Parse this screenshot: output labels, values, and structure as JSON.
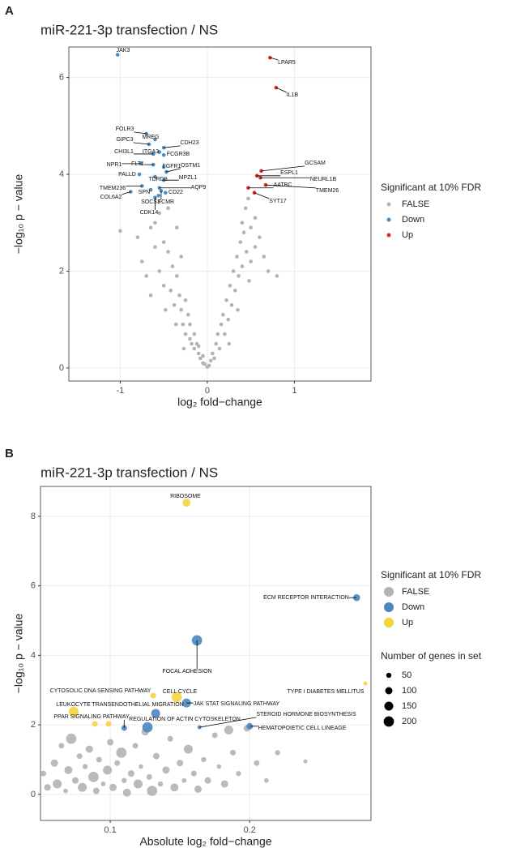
{
  "chart_data": [
    {
      "type": "scatter",
      "panel": "A",
      "title": "miR-221-3p transfection / NS",
      "xlabel": "log₂ fold−change",
      "ylabel": "−log₁₀ p − value",
      "legend_title": "Significant at 10% FDR",
      "xlim": [
        -1.59,
        1.88
      ],
      "ylim": [
        -0.27,
        6.63
      ],
      "xticks": [
        -1,
        0,
        1
      ],
      "yticks": [
        0,
        2,
        4,
        6
      ],
      "grid": true,
      "series": [
        {
          "name": "FALSE",
          "color": "#b3b3b3",
          "x": [
            -1.0,
            -0.8,
            -0.75,
            -0.7,
            -0.65,
            -0.6,
            -0.6,
            -0.55,
            -0.55,
            -0.5,
            -0.5,
            -0.45,
            -0.45,
            -0.42,
            -0.4,
            -0.38,
            -0.35,
            -0.35,
            -0.32,
            -0.3,
            -0.3,
            -0.28,
            -0.25,
            -0.25,
            -0.22,
            -0.2,
            -0.2,
            -0.18,
            -0.15,
            -0.15,
            -0.12,
            -0.1,
            -0.1,
            -0.08,
            -0.05,
            -0.05,
            -0.03,
            0,
            0.02,
            0.04,
            0.06,
            0.08,
            0.1,
            0.12,
            0.14,
            0.16,
            0.18,
            0.2,
            0.22,
            0.24,
            0.26,
            0.28,
            0.3,
            0.32,
            0.34,
            0.36,
            0.38,
            0.4,
            0.4,
            0.42,
            0.44,
            0.45,
            0.47,
            0.5,
            0.5,
            0.55,
            0.55,
            0.6,
            0.65,
            0.7,
            0.8,
            -0.65,
            -0.48,
            0.48,
            0.35,
            -0.36,
            0.25,
            -0.27
          ],
          "values": [
            2.83,
            2.7,
            2.2,
            1.9,
            2.9,
            2.5,
            3.0,
            2.0,
            3.2,
            2.6,
            1.7,
            2.4,
            3.3,
            1.6,
            2.1,
            1.3,
            1.9,
            2.9,
            1.5,
            1.2,
            2.3,
            0.9,
            1.4,
            0.7,
            1.1,
            0.6,
            0.9,
            0.5,
            0.7,
            0.4,
            0.5,
            0.3,
            0.45,
            0.2,
            0.25,
            0.1,
            0.08,
            0.02,
            0.05,
            0.15,
            0.3,
            0.2,
            0.5,
            0.7,
            0.4,
            0.9,
            1.1,
            0.7,
            1.4,
            1.0,
            1.7,
            1.3,
            2.0,
            1.6,
            2.3,
            1.9,
            2.6,
            2.1,
            3.0,
            2.8,
            3.3,
            2.4,
            3.5,
            2.9,
            2.2,
            3.1,
            2.5,
            2.7,
            2.3,
            2.0,
            1.9,
            1.5,
            1.2,
            1.8,
            1.2,
            0.9,
            0.5,
            0.4
          ]
        },
        {
          "name": "Down",
          "color": "#4a8ec6",
          "x": [
            -1.03,
            -0.7,
            -0.6,
            -0.67,
            -0.5,
            -0.62,
            -0.55,
            -0.5,
            -0.76,
            -0.62,
            -0.5,
            -0.47,
            -0.78,
            -0.6,
            -0.5,
            -0.75,
            -0.55,
            -0.48,
            -0.65,
            -0.88,
            -0.56,
            -0.53,
            -0.6
          ],
          "values": [
            6.47,
            4.84,
            4.72,
            4.62,
            4.55,
            4.42,
            4.46,
            4.4,
            4.22,
            4.2,
            4.15,
            4.05,
            4.0,
            3.95,
            3.88,
            3.76,
            3.72,
            3.62,
            3.68,
            3.64,
            3.56,
            3.66,
            3.52
          ],
          "labels": [
            "JAK3",
            "FOLR3",
            "MREG",
            "GIPC3",
            "CDH23",
            "CHI3L1",
            "ITGA3",
            "FCGR3B",
            "NPR1",
            "FLT1",
            "FGFR1",
            "OSTM1",
            "PALLD",
            "TDRD9",
            "MPZL1",
            "TMEM236",
            "AQP9",
            "CD22",
            "SPN",
            "COL6A2",
            "SOCS3",
            "FCMR",
            "CDK14"
          ]
        },
        {
          "name": "Up",
          "color": "#d62c2c",
          "x": [
            0.72,
            0.79,
            0.62,
            0.57,
            0.61,
            0.67,
            0.47,
            0.54
          ],
          "values": [
            6.41,
            5.79,
            4.07,
            3.97,
            3.93,
            3.78,
            3.72,
            3.62
          ],
          "labels": [
            "LPAR5",
            "IL1B",
            "GCSAM",
            "ESPL1",
            "NEURL1B",
            "TMEM26",
            "AATBC",
            "SYT17"
          ]
        }
      ]
    },
    {
      "type": "scatter",
      "panel": "B",
      "title": "miR-221-3p transfection / NS",
      "xlabel": "Absolute log₂ fold−change",
      "ylabel": "−log₁₀ p − value",
      "legend_title": "Significant at 10% FDR",
      "xlim": [
        0.05,
        0.287
      ],
      "ylim": [
        -0.75,
        8.86
      ],
      "xticks": [
        0.1,
        0.2
      ],
      "yticks": [
        0,
        2,
        4,
        6,
        8
      ],
      "grid": true,
      "size_legend": {
        "title": "Number of genes in set",
        "values": [
          50,
          100,
          150,
          200
        ]
      },
      "series": [
        {
          "name": "FALSE",
          "color": "#b3b3b3",
          "x": [
            0.052,
            0.055,
            0.06,
            0.062,
            0.065,
            0.068,
            0.07,
            0.072,
            0.075,
            0.078,
            0.08,
            0.082,
            0.085,
            0.088,
            0.09,
            0.092,
            0.095,
            0.098,
            0.1,
            0.102,
            0.105,
            0.108,
            0.11,
            0.112,
            0.115,
            0.118,
            0.12,
            0.122,
            0.125,
            0.128,
            0.13,
            0.133,
            0.136,
            0.14,
            0.143,
            0.146,
            0.15,
            0.153,
            0.156,
            0.16,
            0.163,
            0.167,
            0.17,
            0.175,
            0.178,
            0.182,
            0.188,
            0.192,
            0.198,
            0.205,
            0.212,
            0.22,
            0.24,
            0.185
          ],
          "values": [
            0.6,
            0.2,
            0.9,
            0.3,
            1.4,
            0.1,
            0.7,
            1.6,
            0.4,
            1.1,
            0.2,
            0.8,
            1.3,
            0.5,
            0.1,
            1.0,
            0.3,
            0.7,
            1.5,
            0.2,
            0.9,
            1.2,
            0.4,
            0.05,
            0.6,
            1.4,
            0.3,
            0.8,
            1.8,
            0.5,
            0.1,
            1.1,
            0.3,
            0.7,
            1.6,
            0.2,
            0.9,
            0.4,
            1.3,
            0.6,
            0.15,
            1.0,
            0.4,
            1.7,
            0.8,
            0.3,
            1.2,
            0.6,
            1.9,
            0.9,
            0.4,
            1.2,
            0.95,
            1.85
          ],
          "sizes": [
            60,
            80,
            100,
            150,
            60,
            40,
            120,
            200,
            80,
            60,
            150,
            50,
            100,
            200,
            80,
            60,
            40,
            150,
            80,
            100,
            60,
            200,
            50,
            120,
            80,
            60,
            150,
            40,
            100,
            60,
            200,
            80,
            50,
            100,
            60,
            120,
            80,
            40,
            150,
            60,
            100,
            50,
            80,
            60,
            40,
            100,
            60,
            50,
            80,
            60,
            40,
            50,
            30,
            150
          ]
        },
        {
          "name": "Down",
          "color": "#4a86c0",
          "x": [
            0.2767,
            0.1622,
            0.1547,
            0.164,
            0.11,
            0.1267,
            0.2,
            0.1326
          ],
          "values": [
            5.66,
            4.43,
            2.63,
            1.93,
            1.91,
            1.93,
            1.96,
            2.33
          ],
          "sizes": [
            90,
            200,
            150,
            30,
            60,
            200,
            80,
            150
          ],
          "labels": [
            "ECM RECEPTOR INTERACTION",
            "FOCAL ADHESION",
            "JAK STAT SIGNALING PATHWAY",
            "STEROID HORMONE BIOSYNTHESIS",
            "PPAR SIGNALING PATHWAY",
            "REGULATION OF ACTIN CYTOSKELETON",
            "HEMATOPOIETIC CELL LINEAGE",
            null
          ]
        },
        {
          "name": "Up",
          "color": "#f5d33f",
          "x": [
            0.1547,
            0.283,
            0.1308,
            0.1477,
            0.0738,
            0.089,
            0.0988
          ],
          "values": [
            8.39,
            3.19,
            2.84,
            2.8,
            2.38,
            2.03,
            2.03
          ],
          "sizes": [
            120,
            30,
            60,
            200,
            180,
            60,
            60
          ],
          "labels": [
            "RIBOSOME",
            "TYPE I DIABETES MELLITUS",
            "CYTOSOLIC DNA SENSING PATHWAY",
            "CELL CYCLE",
            "LEUKOCYTE TRANSENDOTHELIAL MIGRATION",
            null,
            null
          ]
        }
      ]
    }
  ]
}
